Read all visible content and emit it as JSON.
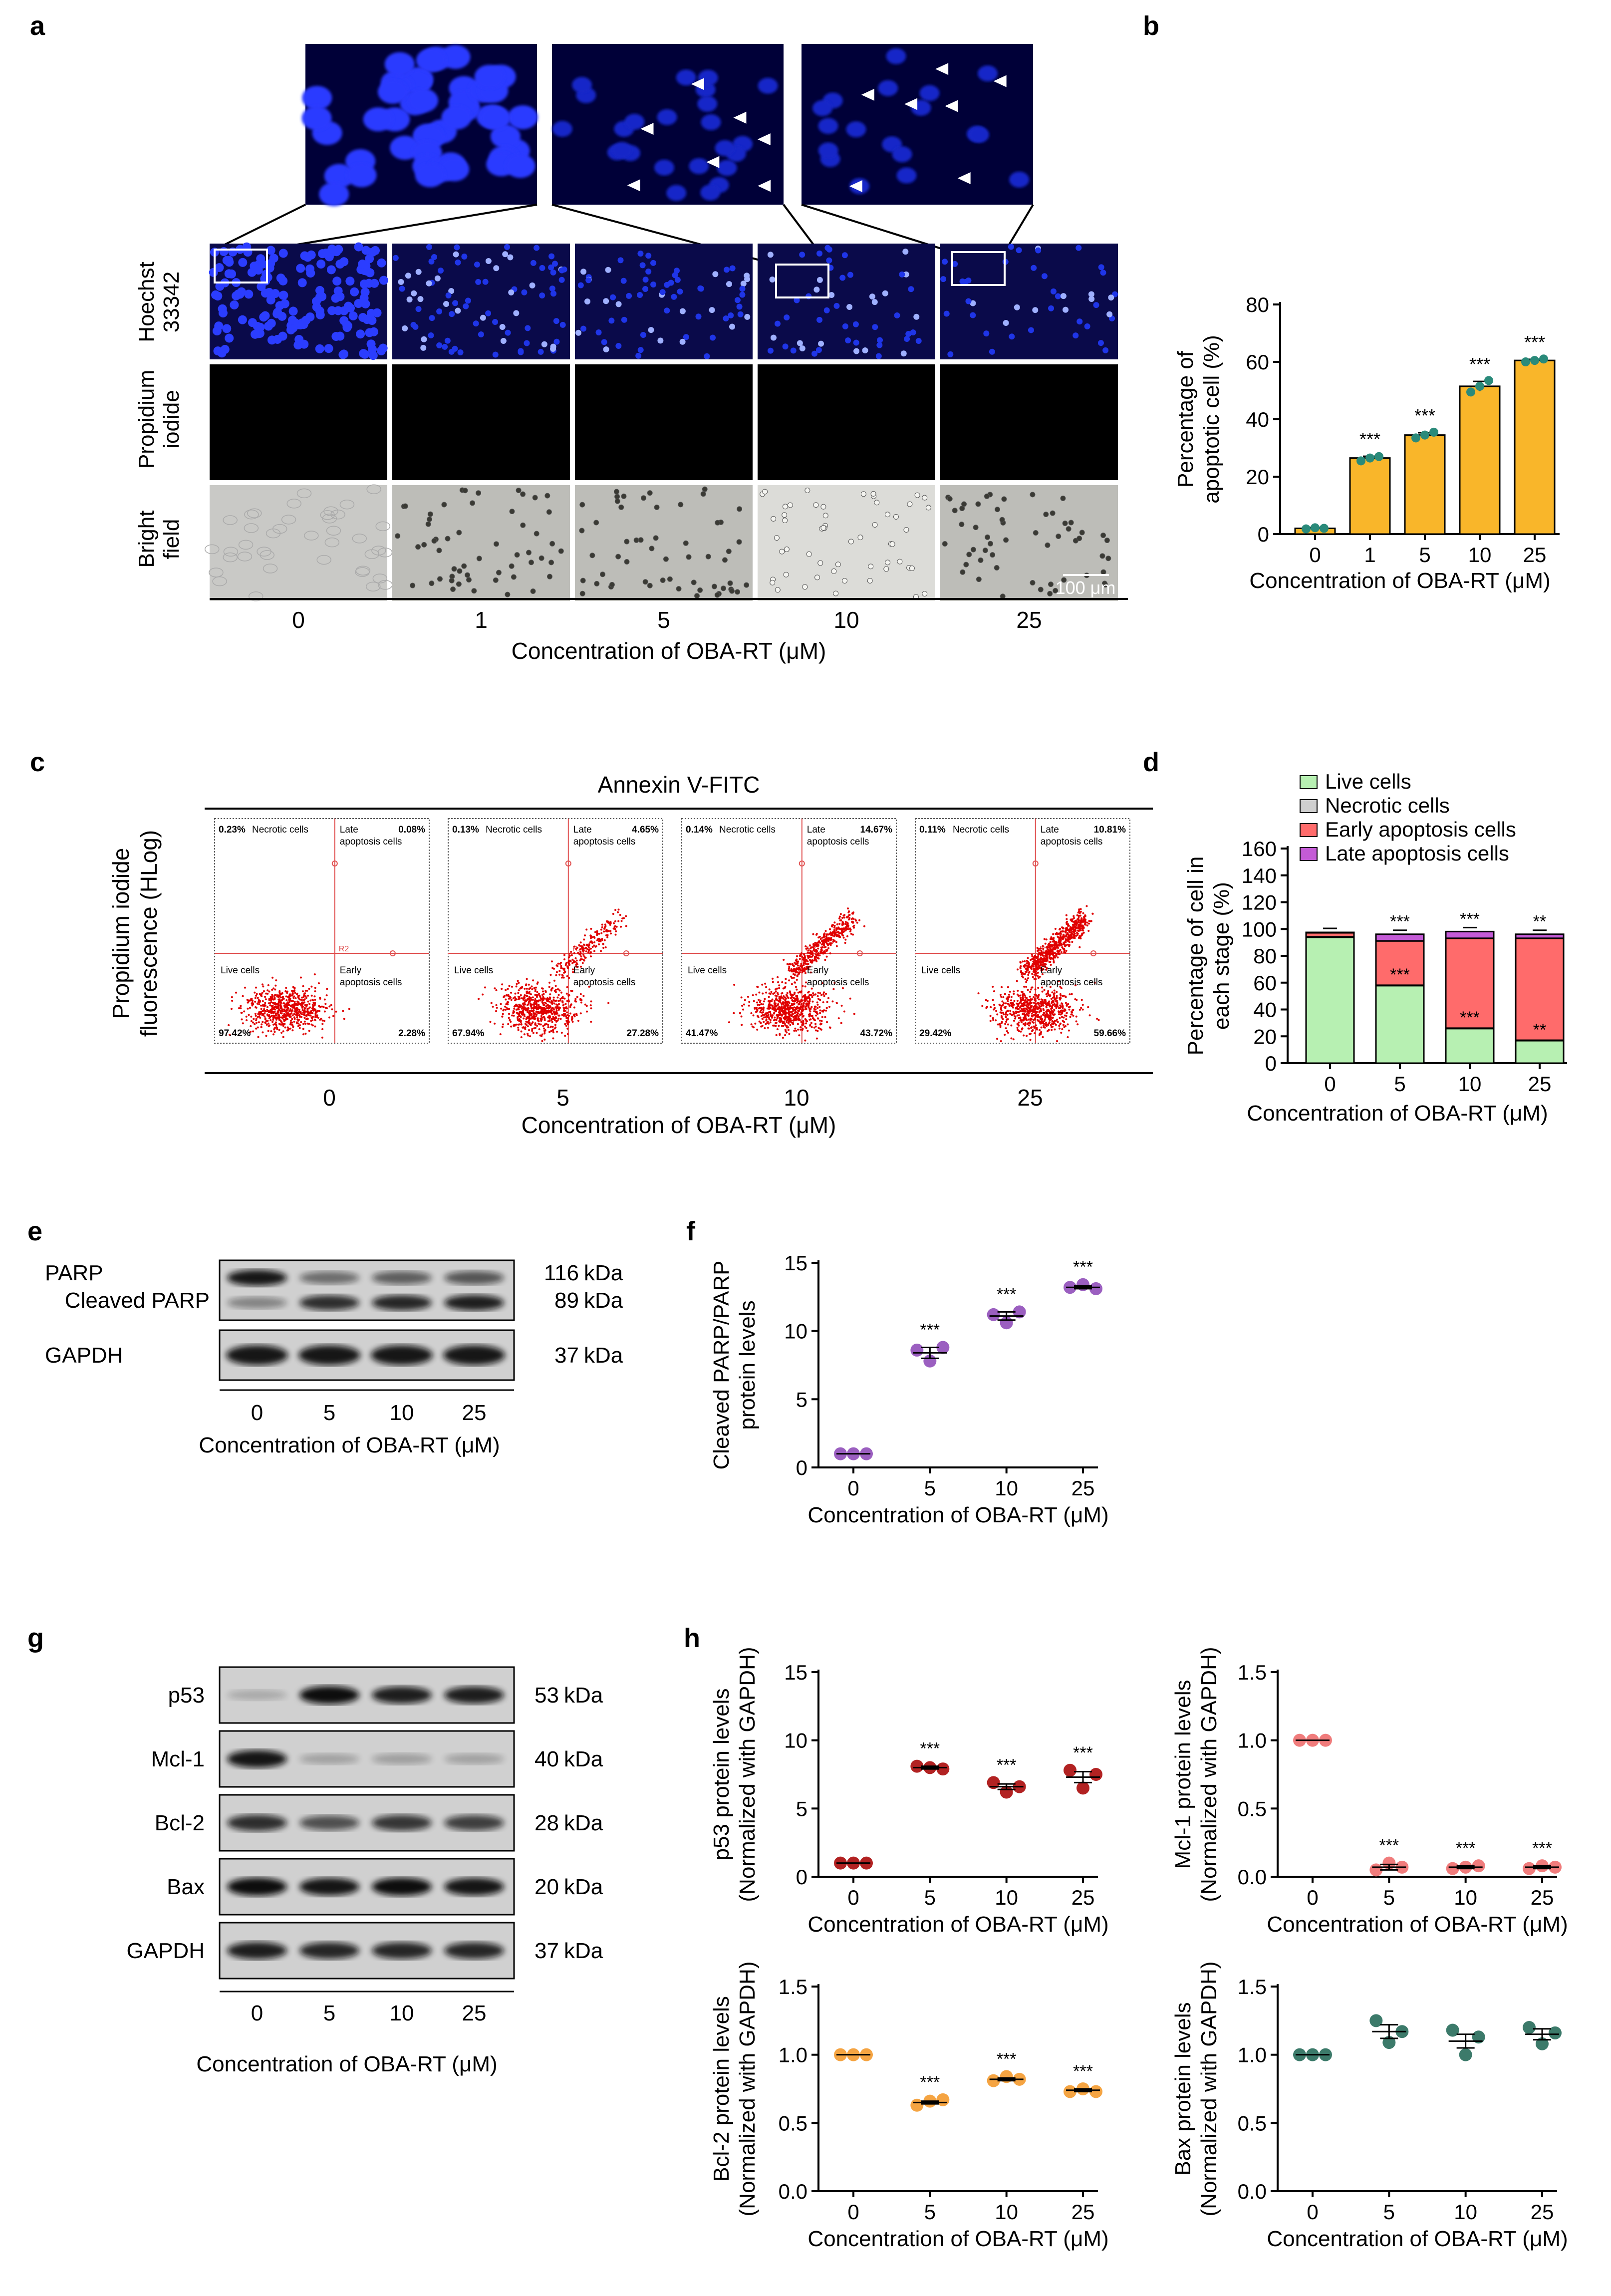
{
  "panels": {
    "a": {
      "label": "a",
      "row_labels": [
        "Hoechst 33342",
        "Propidium iodide",
        "Bright field"
      ],
      "concentrations": [
        "0",
        "1",
        "5",
        "10",
        "25"
      ],
      "xlabel": "Concentration of OBA-RT (μM)",
      "scale_bar": "100 μm"
    },
    "c": {
      "label": "c",
      "title": "Annexin V-FITC",
      "ylabel_line1": "Propidium iodide",
      "ylabel_line2": "fluorescence (HLog)",
      "concentrations": [
        "0",
        "5",
        "10",
        "25"
      ],
      "xlabel": "Concentration of OBA-RT (μM)",
      "quadrant_labels": {
        "necrotic": "Necrotic cells",
        "late_1": "Late",
        "late_2": "apoptosis cells",
        "live": "Live cells",
        "early_1": "Early",
        "early_2": "apoptosis cells",
        "gate": "R2"
      },
      "plots": [
        {
          "necrotic": "0.23%",
          "late": "0.08%",
          "live": "97.42%",
          "early": "2.28%"
        },
        {
          "necrotic": "0.13%",
          "late": "4.65%",
          "live": "67.94%",
          "early": "27.28%"
        },
        {
          "necrotic": "0.14%",
          "late": "14.67%",
          "live": "41.47%",
          "early": "43.72%"
        },
        {
          "necrotic": "0.11%",
          "late": "10.81%",
          "live": "29.42%",
          "early": "59.66%"
        }
      ]
    },
    "e": {
      "label": "e",
      "bands": [
        {
          "name": "PARP",
          "size": "116",
          "unit": "kDa"
        },
        {
          "name": "Cleaved PARP",
          "size": "89",
          "unit": "kDa"
        },
        {
          "name": "GAPDH",
          "size": "37",
          "unit": "kDa"
        }
      ],
      "lanes": [
        "0",
        "5",
        "10",
        "25"
      ],
      "xlabel": "Concentration of OBA-RT (μM)"
    },
    "g": {
      "label": "g",
      "bands": [
        {
          "name": "p53",
          "size": "53",
          "unit": "kDa"
        },
        {
          "name": "Mcl-1",
          "size": "40",
          "unit": "kDa"
        },
        {
          "name": "Bcl-2",
          "size": "28",
          "unit": "kDa"
        },
        {
          "name": "Bax",
          "size": "20",
          "unit": "kDa"
        },
        {
          "name": "GAPDH",
          "size": "37",
          "unit": "kDa"
        }
      ],
      "lanes": [
        "0",
        "5",
        "10",
        "25"
      ],
      "xlabel": "Concentration of OBA-RT (μM)"
    },
    "h": {
      "label": "h"
    }
  },
  "chart_data": [
    {
      "id": "b",
      "type": "bar",
      "label": "b",
      "categories": [
        "0",
        "1",
        "5",
        "10",
        "25"
      ],
      "values": [
        2,
        26.5,
        34.5,
        51.5,
        60.5
      ],
      "points": [
        [
          1.8,
          2.2,
          2.0
        ],
        [
          25.5,
          26.5,
          27.0
        ],
        [
          33.5,
          34.5,
          35.5
        ],
        [
          49.5,
          51.5,
          53.5
        ],
        [
          60.0,
          60.5,
          61.0
        ]
      ],
      "errors": [
        0.3,
        0.6,
        0.8,
        1.7,
        0.4
      ],
      "sig": [
        "",
        "***",
        "***",
        "***",
        "***"
      ],
      "ylabel": [
        "Percentage of",
        "apoptotic cell (%)"
      ],
      "xlabel": "Concentration of OBA-RT (μM)",
      "ylim": [
        0,
        80
      ],
      "yticks": [
        0,
        20,
        40,
        60,
        80
      ],
      "color": "#F9B62A",
      "point_color": "#2A8A7A"
    },
    {
      "id": "d",
      "type": "bar",
      "stacked": true,
      "label": "d",
      "categories": [
        "0",
        "5",
        "10",
        "25"
      ],
      "series": [
        {
          "name": "Live cells",
          "values": [
            94,
            58,
            26,
            17
          ],
          "color": "#B7F0B2"
        },
        {
          "name": "Necrotic cells",
          "values": [
            0.2,
            0.1,
            0.1,
            0.1
          ],
          "color": "#CFCFCF"
        },
        {
          "name": "Early apoptosis cells",
          "values": [
            3,
            33,
            67,
            76
          ],
          "color": "#FF6B6B"
        },
        {
          "name": "Late apoptosis cells",
          "values": [
            0.3,
            5,
            5,
            3
          ],
          "color": "#C45BD6"
        }
      ],
      "sig_top": [
        "",
        "***",
        "***",
        "**"
      ],
      "sig_mid": [
        "",
        "***",
        "***",
        "**"
      ],
      "ylabel": [
        "Percentage of cell in",
        "each stage (%)"
      ],
      "xlabel": "Concentration of OBA-RT (μM)",
      "ylim": [
        0,
        160
      ],
      "yticks": [
        0,
        20,
        40,
        60,
        80,
        100,
        120,
        140,
        160
      ]
    },
    {
      "id": "f",
      "type": "scatter",
      "label": "f",
      "categories": [
        "0",
        "5",
        "10",
        "25"
      ],
      "points": [
        [
          1,
          1,
          1
        ],
        [
          8.6,
          7.8,
          8.8
        ],
        [
          11.2,
          10.6,
          11.4
        ],
        [
          13.2,
          13.4,
          13.1
        ]
      ],
      "means": [
        1,
        8.4,
        11.1,
        13.2
      ],
      "errors": [
        0,
        0.4,
        0.3,
        0.1
      ],
      "sig": [
        "",
        "***",
        "***",
        "***"
      ],
      "ylabel": [
        "Cleaved PARP/PARP",
        "protein levels"
      ],
      "xlabel": "Concentration of OBA-RT (μM)",
      "ylim": [
        0,
        15
      ],
      "yticks": [
        0,
        5,
        10,
        15
      ],
      "color": "#9B5FC0"
    },
    {
      "id": "h_p53",
      "type": "scatter",
      "categories": [
        "0",
        "5",
        "10",
        "25"
      ],
      "points": [
        [
          1,
          1,
          1
        ],
        [
          8.1,
          8.0,
          7.9
        ],
        [
          6.9,
          6.2,
          6.6
        ],
        [
          7.8,
          6.5,
          7.5
        ]
      ],
      "means": [
        1,
        8.0,
        6.6,
        7.3
      ],
      "errors": [
        0,
        0.1,
        0.2,
        0.4
      ],
      "sig": [
        "",
        "***",
        "***",
        "***"
      ],
      "ylabel": [
        "p53 protein levels",
        "(Normalized with GAPDH)"
      ],
      "xlabel": "Concentration of OBA-RT (μM)",
      "ylim": [
        0,
        15
      ],
      "yticks": [
        0,
        5,
        10,
        15
      ],
      "color": "#B22222"
    },
    {
      "id": "h_mcl1",
      "type": "scatter",
      "categories": [
        "0",
        "5",
        "10",
        "25"
      ],
      "points": [
        [
          1,
          1,
          1
        ],
        [
          0.05,
          0.1,
          0.07
        ],
        [
          0.06,
          0.07,
          0.08
        ],
        [
          0.06,
          0.08,
          0.07
        ]
      ],
      "means": [
        1,
        0.07,
        0.07,
        0.07
      ],
      "errors": [
        0,
        0.02,
        0.01,
        0.01
      ],
      "sig": [
        "",
        "***",
        "***",
        "***"
      ],
      "ylabel": [
        "Mcl-1 protein levels",
        "(Normalized with GAPDH)"
      ],
      "xlabel": "Concentration of OBA-RT (μM)",
      "ylim": [
        0,
        1.5
      ],
      "yticks": [
        "0.0",
        "0.5",
        "1.0",
        "1.5"
      ],
      "color": "#F07C7C"
    },
    {
      "id": "h_bcl2",
      "type": "scatter",
      "categories": [
        "0",
        "5",
        "10",
        "25"
      ],
      "points": [
        [
          1,
          1,
          1
        ],
        [
          0.63,
          0.66,
          0.67
        ],
        [
          0.81,
          0.84,
          0.82
        ],
        [
          0.73,
          0.75,
          0.73
        ]
      ],
      "means": [
        1,
        0.65,
        0.82,
        0.74
      ],
      "errors": [
        0,
        0.01,
        0.01,
        0.01
      ],
      "sig": [
        "",
        "***",
        "***",
        "***"
      ],
      "ylabel": [
        "Bcl-2 protein levels",
        "(Normalized with GAPDH)"
      ],
      "xlabel": "Concentration of OBA-RT (μM)",
      "ylim": [
        0,
        1.5
      ],
      "yticks": [
        "0.0",
        "0.5",
        "1.0",
        "1.5"
      ],
      "color": "#F5A442"
    },
    {
      "id": "h_bax",
      "type": "scatter",
      "categories": [
        "0",
        "5",
        "10",
        "25"
      ],
      "points": [
        [
          1,
          1,
          1
        ],
        [
          1.25,
          1.09,
          1.17
        ],
        [
          1.18,
          1.0,
          1.13
        ],
        [
          1.2,
          1.08,
          1.16
        ]
      ],
      "means": [
        1,
        1.17,
        1.1,
        1.15
      ],
      "errors": [
        0,
        0.05,
        0.05,
        0.04
      ],
      "sig": [
        "",
        "",
        "",
        ""
      ],
      "ylabel": [
        "Bax protein levels",
        "(Normalized with GAPDH)"
      ],
      "xlabel": "Concentration of OBA-RT (μM)",
      "ylim": [
        0,
        1.5
      ],
      "yticks": [
        "0.0",
        "0.5",
        "1.0",
        "1.5"
      ],
      "color": "#3C7A6A"
    }
  ]
}
